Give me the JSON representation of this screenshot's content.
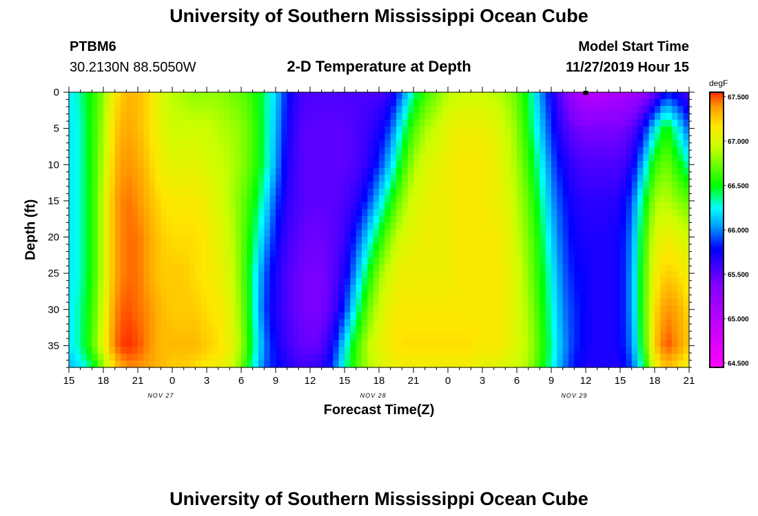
{
  "page": {
    "title_top": "University of Southern Mississippi Ocean Cube",
    "title_bottom": "University of Southern Mississippi Ocean Cube",
    "station_id": "PTBM6",
    "station_coords": "30.2130N 88.5050W",
    "plot_title": "2-D Temperature at Depth",
    "start_label": "Model Start Time",
    "start_value": "11/27/2019 Hour 15"
  },
  "chart_data": {
    "type": "heatmap",
    "title": "2-D Temperature at Depth",
    "xlabel": "Forecast Time(Z)",
    "ylabel": "Depth (ft)",
    "x_ticks": [
      "15",
      "18",
      "21",
      "0",
      "3",
      "6",
      "9",
      "12",
      "15",
      "18",
      "21",
      "0",
      "3",
      "6",
      "9",
      "12",
      "15",
      "18",
      "21"
    ],
    "date_labels": [
      "NOV 27",
      "NOV 28",
      "NOV 29"
    ],
    "y_ticks": [
      "0",
      "5",
      "10",
      "15",
      "20",
      "25",
      "30",
      "35"
    ],
    "ylim": [
      0,
      38
    ],
    "xlim_hours_from_start": [
      0,
      54
    ],
    "colorbar": {
      "unit": "degF",
      "ticks": [
        "67.500",
        "67.000",
        "66.500",
        "66.000",
        "65.500",
        "65.000",
        "64.500"
      ],
      "range": [
        64.45,
        67.55
      ]
    },
    "marker": {
      "hour": 45,
      "depth": 0
    },
    "x_hours": [
      0,
      1,
      2,
      3,
      4,
      5,
      6,
      7,
      8,
      9,
      10,
      11,
      12,
      13,
      14,
      15,
      16,
      17,
      18,
      19,
      20,
      21,
      22,
      23,
      24,
      25,
      26,
      27,
      28,
      29,
      30,
      31,
      32,
      33,
      34,
      35,
      36,
      37,
      38,
      39,
      40,
      41,
      42,
      43,
      44,
      45,
      46,
      47,
      48,
      49,
      50,
      51,
      52,
      53,
      54
    ],
    "depths_ft": [
      0,
      5,
      10,
      15,
      20,
      25,
      30,
      35,
      38
    ],
    "temperature_degF": [
      [
        66.2,
        66.35,
        66.55,
        66.8,
        67.15,
        67.3,
        67.3,
        67.2,
        67.0,
        66.9,
        66.85,
        66.8,
        66.8,
        66.8,
        66.75,
        66.7,
        66.6,
        66.4,
        66.15,
        65.8,
        65.6,
        65.55,
        65.55,
        65.55,
        65.55,
        65.55,
        65.55,
        65.55,
        65.65,
        65.95,
        66.35,
        66.6,
        66.75,
        66.9,
        66.95,
        66.95,
        66.95,
        66.9,
        66.85,
        66.7,
        66.45,
        66.05,
        65.75,
        65.45,
        65.2,
        65.0,
        65.0,
        65.05,
        65.1,
        65.15,
        65.25,
        65.45,
        65.8,
        65.7,
        65.55
      ],
      [
        66.2,
        66.3,
        66.55,
        66.85,
        67.25,
        67.35,
        67.3,
        67.2,
        67.05,
        66.95,
        66.95,
        66.95,
        66.95,
        66.9,
        66.85,
        66.8,
        66.65,
        66.4,
        66.1,
        65.75,
        65.55,
        65.5,
        65.5,
        65.5,
        65.5,
        65.55,
        65.6,
        65.7,
        65.9,
        66.3,
        66.65,
        66.85,
        66.95,
        67.05,
        67.1,
        67.1,
        67.1,
        67.05,
        66.95,
        66.8,
        66.5,
        66.15,
        65.85,
        65.6,
        65.45,
        65.4,
        65.4,
        65.4,
        65.4,
        65.5,
        65.75,
        66.2,
        66.55,
        66.25,
        65.9
      ],
      [
        66.2,
        66.3,
        66.55,
        66.9,
        67.3,
        67.4,
        67.35,
        67.25,
        67.1,
        67.05,
        67.05,
        67.05,
        67.0,
        66.95,
        66.9,
        66.8,
        66.65,
        66.4,
        66.05,
        65.7,
        65.55,
        65.5,
        65.5,
        65.5,
        65.5,
        65.55,
        65.65,
        65.85,
        66.15,
        66.55,
        66.85,
        67.0,
        67.05,
        67.1,
        67.15,
        67.15,
        67.15,
        67.1,
        67.0,
        66.85,
        66.6,
        66.3,
        65.95,
        65.75,
        65.6,
        65.55,
        65.55,
        65.55,
        65.55,
        65.7,
        66.1,
        66.6,
        66.75,
        66.55,
        66.3
      ],
      [
        66.2,
        66.3,
        66.55,
        66.95,
        67.35,
        67.45,
        67.4,
        67.3,
        67.2,
        67.15,
        67.15,
        67.15,
        67.1,
        67.0,
        66.9,
        66.75,
        66.55,
        66.25,
        65.9,
        65.65,
        65.55,
        65.5,
        65.5,
        65.5,
        65.55,
        65.65,
        65.85,
        66.15,
        66.5,
        66.8,
        67.0,
        67.05,
        67.1,
        67.1,
        67.15,
        67.15,
        67.15,
        67.1,
        67.05,
        66.9,
        66.7,
        66.4,
        66.05,
        65.85,
        65.7,
        65.65,
        65.65,
        65.65,
        65.7,
        65.9,
        66.4,
        66.85,
        66.9,
        66.8,
        66.7
      ],
      [
        66.2,
        66.3,
        66.55,
        66.95,
        67.35,
        67.45,
        67.45,
        67.35,
        67.25,
        67.2,
        67.2,
        67.2,
        67.15,
        67.05,
        66.95,
        66.75,
        66.45,
        66.1,
        65.8,
        65.6,
        65.5,
        65.45,
        65.45,
        65.5,
        65.6,
        65.85,
        66.15,
        66.5,
        66.8,
        67.0,
        67.05,
        67.1,
        67.1,
        67.1,
        67.15,
        67.15,
        67.15,
        67.15,
        67.1,
        66.95,
        66.75,
        66.5,
        66.15,
        65.9,
        65.75,
        65.7,
        65.7,
        65.7,
        65.75,
        66.0,
        66.55,
        67.0,
        67.1,
        67.05,
        66.95
      ],
      [
        66.2,
        66.3,
        66.55,
        66.95,
        67.35,
        67.45,
        67.45,
        67.35,
        67.25,
        67.25,
        67.25,
        67.2,
        67.15,
        67.1,
        67.0,
        66.75,
        66.35,
        65.95,
        65.7,
        65.55,
        65.45,
        65.4,
        65.4,
        65.5,
        65.7,
        66.05,
        66.45,
        66.8,
        67.0,
        67.1,
        67.1,
        67.1,
        67.1,
        67.1,
        67.15,
        67.15,
        67.15,
        67.15,
        67.1,
        67.0,
        66.8,
        66.55,
        66.25,
        65.95,
        65.8,
        65.75,
        65.7,
        65.7,
        65.75,
        66.05,
        66.6,
        67.1,
        67.25,
        67.2,
        67.1
      ],
      [
        66.2,
        66.35,
        66.6,
        67.0,
        67.4,
        67.5,
        67.45,
        67.4,
        67.3,
        67.25,
        67.25,
        67.25,
        67.2,
        67.15,
        67.05,
        66.8,
        66.35,
        65.9,
        65.7,
        65.55,
        65.45,
        65.4,
        65.4,
        65.55,
        65.85,
        66.3,
        66.7,
        66.95,
        67.1,
        67.15,
        67.15,
        67.15,
        67.15,
        67.15,
        67.15,
        67.15,
        67.15,
        67.15,
        67.1,
        67.0,
        66.85,
        66.6,
        66.3,
        66.0,
        65.85,
        65.75,
        65.7,
        65.7,
        65.75,
        66.05,
        66.6,
        67.2,
        67.4,
        67.35,
        67.2
      ],
      [
        66.2,
        66.35,
        66.65,
        67.05,
        67.45,
        67.55,
        67.5,
        67.4,
        67.3,
        67.3,
        67.3,
        67.3,
        67.25,
        67.2,
        67.1,
        66.85,
        66.4,
        66.0,
        65.75,
        65.6,
        65.5,
        65.45,
        65.5,
        65.75,
        66.2,
        66.6,
        66.9,
        67.05,
        67.15,
        67.2,
        67.2,
        67.2,
        67.2,
        67.2,
        67.2,
        67.2,
        67.15,
        67.15,
        67.1,
        67.0,
        66.9,
        66.65,
        66.35,
        66.05,
        65.85,
        65.75,
        65.7,
        65.7,
        65.75,
        66.0,
        66.55,
        67.25,
        67.5,
        67.4,
        67.25
      ],
      [
        66.1,
        66.2,
        66.4,
        66.8,
        67.25,
        67.4,
        67.4,
        67.35,
        67.3,
        67.25,
        67.25,
        67.2,
        67.15,
        67.1,
        67.0,
        66.75,
        66.3,
        65.95,
        65.8,
        65.7,
        65.6,
        65.6,
        65.65,
        65.9,
        66.3,
        66.65,
        66.85,
        67.0,
        67.05,
        67.1,
        67.1,
        67.1,
        67.1,
        67.1,
        67.1,
        67.1,
        67.05,
        67.05,
        67.0,
        66.95,
        66.85,
        66.6,
        66.3,
        66.0,
        65.8,
        65.7,
        65.7,
        65.7,
        65.7,
        65.9,
        66.4,
        67.05,
        67.3,
        67.2,
        67.05
      ]
    ]
  }
}
